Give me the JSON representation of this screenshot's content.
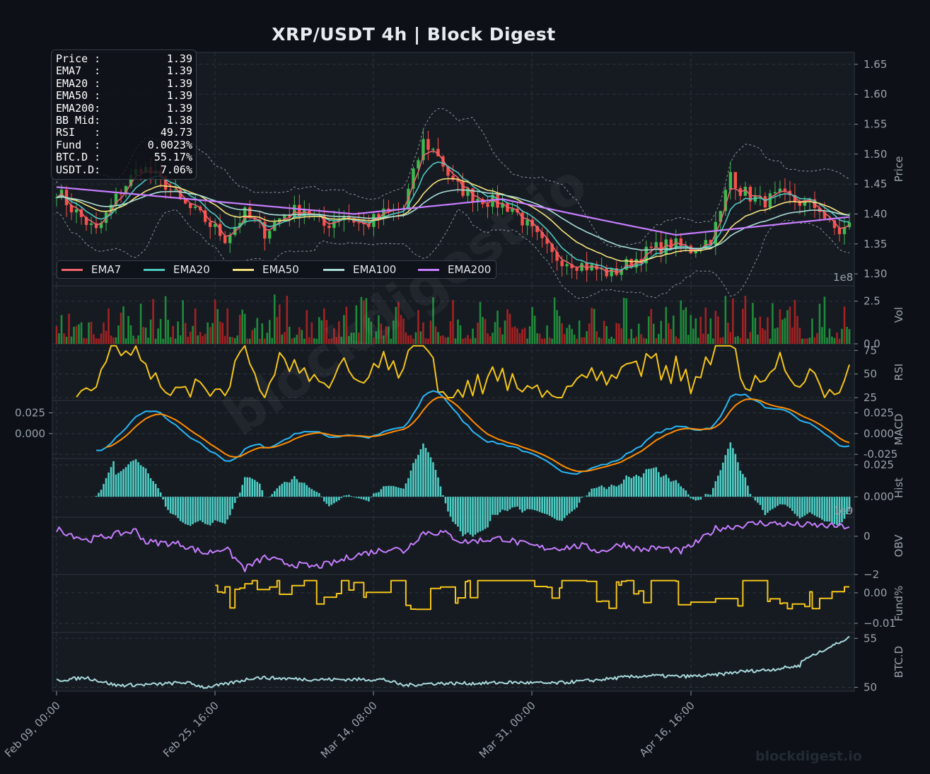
{
  "title": "XRP/USDT  4h  |  Block Digest",
  "watermark": "blockdigest.io",
  "footer": "blockdigest.io",
  "info_box": [
    {
      "label": "Price :",
      "value": "1.39"
    },
    {
      "label": "EMA7  :",
      "value": "1.39"
    },
    {
      "label": "EMA20 :",
      "value": "1.39"
    },
    {
      "label": "EMA50 :",
      "value": "1.39"
    },
    {
      "label": "EMA200:",
      "value": "1.39"
    },
    {
      "label": "BB Mid:",
      "value": "1.38"
    },
    {
      "label": "RSI   :",
      "value": "49.73"
    },
    {
      "label": "Fund  :",
      "value": "0.0023%"
    },
    {
      "label": "BTC.D :",
      "value": "55.17%"
    },
    {
      "label": "USDT.D:",
      "value": "7.06%"
    }
  ],
  "legend": [
    {
      "name": "EMA7",
      "color": "#f0646e"
    },
    {
      "name": "EMA20",
      "color": "#4ec9c0"
    },
    {
      "name": "EMA50",
      "color": "#f5e27a"
    },
    {
      "name": "EMA100",
      "color": "#a9dcd6"
    },
    {
      "name": "EMA200",
      "color": "#c77dff"
    }
  ],
  "colors": {
    "background": "#0d1117",
    "panel": "#161b22",
    "grid": "#2c333b",
    "up": "#3fb950",
    "down": "#f85149",
    "rsi": "#f5c518",
    "macd": "#29b6f6",
    "signal": "#ff8c00",
    "hist": "#4ecdc4",
    "obv": "#c77dff",
    "fund": "#f5c518",
    "btcd": "#a8dadc",
    "bb": "#8b949e"
  },
  "chart_data": {
    "type": "line",
    "timeframe": "4h",
    "x_ticks": [
      "Feb 09, 00:00",
      "Feb 25, 16:00",
      "Mar 14, 08:00",
      "Mar 31, 00:00",
      "Apr 16, 16:00"
    ],
    "panels": [
      {
        "name": "price",
        "ylabel": "Price",
        "ylim": [
          1.28,
          1.67
        ],
        "yticks": [
          "1.30",
          "1.35",
          "1.40",
          "1.45",
          "1.50",
          "1.55",
          "1.60",
          "1.65"
        ],
        "price_anchors": [
          [
            0,
            1.44
          ],
          [
            3,
            1.41
          ],
          [
            8,
            1.37
          ],
          [
            13,
            1.44
          ],
          [
            17,
            1.48
          ],
          [
            22,
            1.45
          ],
          [
            25,
            1.42
          ],
          [
            30,
            1.39
          ],
          [
            34,
            1.36
          ],
          [
            38,
            1.4
          ],
          [
            42,
            1.37
          ],
          [
            46,
            1.4
          ],
          [
            50,
            1.41
          ],
          [
            54,
            1.38
          ],
          [
            58,
            1.4
          ],
          [
            62,
            1.38
          ],
          [
            66,
            1.4
          ],
          [
            70,
            1.41
          ],
          [
            74,
            1.52
          ],
          [
            77,
            1.5
          ],
          [
            80,
            1.45
          ],
          [
            84,
            1.43
          ],
          [
            88,
            1.42
          ],
          [
            92,
            1.41
          ],
          [
            96,
            1.37
          ],
          [
            100,
            1.33
          ],
          [
            104,
            1.32
          ],
          [
            108,
            1.31
          ],
          [
            112,
            1.3
          ],
          [
            116,
            1.32
          ],
          [
            120,
            1.34
          ],
          [
            124,
            1.35
          ],
          [
            128,
            1.34
          ],
          [
            132,
            1.36
          ],
          [
            134,
            1.4
          ],
          [
            136,
            1.47
          ],
          [
            138,
            1.44
          ],
          [
            142,
            1.42
          ],
          [
            146,
            1.43
          ],
          [
            150,
            1.42
          ],
          [
            154,
            1.41
          ],
          [
            156,
            1.38
          ],
          [
            158,
            1.37
          ],
          [
            160,
            1.38
          ]
        ],
        "series": [
          "EMA7",
          "EMA20",
          "EMA50",
          "EMA100",
          "EMA200",
          "BB"
        ]
      },
      {
        "name": "volume",
        "ylabel": "Vol",
        "ylim": [
          0,
          3.4
        ],
        "yticks": [
          "0.0",
          "2.5"
        ],
        "scale_label": "1e8"
      },
      {
        "name": "rsi",
        "ylabel": "RSI",
        "ylim": [
          22,
          82
        ],
        "yticks": [
          "25",
          "50",
          "75"
        ]
      },
      {
        "name": "macd",
        "ylabel": "MACD",
        "ylim": [
          -0.03,
          0.04
        ],
        "yticks_left": [
          "0.025",
          "0.000"
        ],
        "yticks_right": [
          "0.025",
          "0.000",
          "-0.025"
        ]
      },
      {
        "name": "hist",
        "ylabel": "Hist",
        "ylim": [
          -0.016,
          0.03
        ],
        "yticks": [
          "0.025",
          "0.000"
        ],
        "scale_label": "1e9"
      },
      {
        "name": "obv",
        "ylabel": "OBV",
        "ylim": [
          -2.0,
          1.0
        ],
        "yticks": [
          "0",
          "−2"
        ]
      },
      {
        "name": "fund",
        "ylabel": "Fund%",
        "ylim": [
          -0.013,
          0.006
        ],
        "yticks": [
          "0.00",
          "−0.01"
        ]
      },
      {
        "name": "btcd",
        "ylabel": "BTC.D",
        "ylim": [
          49.6,
          55.6
        ],
        "yticks": [
          "50",
          "55"
        ]
      }
    ],
    "obv_anchors": [
      [
        0,
        0.4
      ],
      [
        6,
        -0.2
      ],
      [
        12,
        0.1
      ],
      [
        16,
        0.3
      ],
      [
        18,
        -0.3
      ],
      [
        25,
        -0.4
      ],
      [
        30,
        -0.9
      ],
      [
        34,
        -0.6
      ],
      [
        38,
        -1.7
      ],
      [
        42,
        -1.1
      ],
      [
        46,
        -1.4
      ],
      [
        52,
        -1.6
      ],
      [
        56,
        -1.4
      ],
      [
        60,
        -1.0
      ],
      [
        64,
        -0.8
      ],
      [
        68,
        -0.6
      ],
      [
        70,
        -0.8
      ],
      [
        74,
        0.2
      ],
      [
        78,
        0.2
      ],
      [
        82,
        -0.3
      ],
      [
        86,
        -0.2
      ],
      [
        90,
        -0.1
      ],
      [
        94,
        -0.4
      ],
      [
        98,
        -0.6
      ],
      [
        102,
        -0.6
      ],
      [
        106,
        -0.5
      ],
      [
        110,
        -0.8
      ],
      [
        114,
        -0.4
      ],
      [
        118,
        -0.7
      ],
      [
        122,
        -0.6
      ],
      [
        126,
        -0.8
      ],
      [
        130,
        -0.2
      ],
      [
        133,
        0.4
      ],
      [
        136,
        0.5
      ],
      [
        142,
        0.7
      ],
      [
        150,
        0.6
      ],
      [
        160,
        0.5
      ]
    ],
    "btcd_anchors": [
      [
        0,
        50.7
      ],
      [
        6,
        51.0
      ],
      [
        12,
        50.2
      ],
      [
        20,
        50.3
      ],
      [
        26,
        50.5
      ],
      [
        30,
        50.0
      ],
      [
        34,
        50.3
      ],
      [
        40,
        51.0
      ],
      [
        46,
        50.9
      ],
      [
        52,
        50.8
      ],
      [
        58,
        50.8
      ],
      [
        66,
        50.8
      ],
      [
        70,
        50.2
      ],
      [
        76,
        50.4
      ],
      [
        84,
        50.4
      ],
      [
        92,
        50.5
      ],
      [
        100,
        50.4
      ],
      [
        108,
        50.7
      ],
      [
        114,
        51.0
      ],
      [
        120,
        51.2
      ],
      [
        126,
        51.1
      ],
      [
        132,
        51.2
      ],
      [
        138,
        51.6
      ],
      [
        144,
        51.8
      ],
      [
        150,
        52.2
      ],
      [
        156,
        52.7
      ],
      [
        160,
        55.2
      ]
    ]
  }
}
